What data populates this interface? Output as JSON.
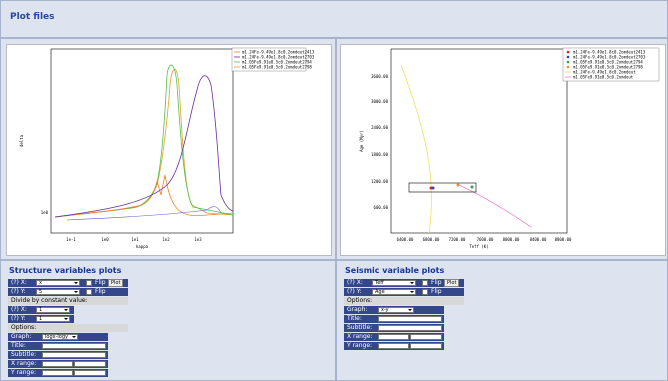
{
  "header": {
    "title": "Plot files"
  },
  "left_plot": {
    "y_label": "delta",
    "x_label": "kappa",
    "x_ticks": [
      "1e-1",
      "1e0",
      "1e1",
      "1e2",
      "1e3"
    ],
    "y_ticks": [
      "1e0"
    ],
    "legend": [
      {
        "label": "m1.24Fe-9.49e1.8c0.2omdeut2413",
        "color": "#f08030"
      },
      {
        "label": "m1.24Fe-9.49e1.8c0.2omdeut2703",
        "color": "#6a2ca0"
      },
      {
        "label": "m1.05Fe9.91e0.5c0.2omdeut2794",
        "color": "#50c050"
      },
      {
        "label": "m1.05Fe9.91e0.5c0.2omdeut2798",
        "color": "#e0a020"
      }
    ]
  },
  "right_plot": {
    "y_label": "Age (Myr)",
    "x_label": "Teff (K)",
    "x_ticks": [
      "6400.00",
      "6800.00",
      "7200.00",
      "7600.00",
      "8000.00",
      "8400.00",
      "8800.00"
    ],
    "y_ticks": [
      "3600.00",
      "3000.00",
      "2400.00",
      "1800.00",
      "1200.00",
      "600.00"
    ],
    "legend": [
      {
        "label": "m1.24Fe-9.49e1.8c0.2omdeut2413",
        "color": "#e02020",
        "kind": "dot"
      },
      {
        "label": "m1.24Fe-9.49e1.8c0.2omdeut2703",
        "color": "#3040c0",
        "kind": "dot"
      },
      {
        "label": "m1.05Fe9.91e0.5c0.2omdeut2794",
        "color": "#30a040",
        "kind": "dot"
      },
      {
        "label": "m1.05Fe9.91e0.5c0.2omdeut2798",
        "color": "#f09020",
        "kind": "dot"
      },
      {
        "label": "m1.24Fe-9.49e1.8c0.2omdeut",
        "color": "#f0e060",
        "kind": "line"
      },
      {
        "label": "m1.05Fe9.91e0.5c0.2omdeut",
        "color": "#f080d0",
        "kind": "line"
      }
    ]
  },
  "structure_form": {
    "title": "Structure variables plots",
    "x_label": "(?) X:",
    "x_value": "x",
    "flip_x": "Flip",
    "plot": "Plot",
    "y_label": "(?) Y:",
    "y_value": "5",
    "flip_y": "Flip",
    "divide": "Divide by constant value:",
    "div_x_label": "(?) X:",
    "div_x_value": "1",
    "div_y_label": "(?) Y:",
    "div_y_value": "1",
    "options": "Options:",
    "graph_label": "Graph:",
    "graph_value": "logx-logy",
    "title_label": "Title:",
    "subtitle_label": "Subtitle:",
    "xrange_label": "X range:",
    "yrange_label": "Y range:"
  },
  "seismic_form": {
    "title": "Seismic variable plots",
    "x_label": "(?) X:",
    "x_value": "Teff",
    "flip_x": "Flip",
    "plot": "Plot",
    "y_label": "(?) Y:",
    "y_value": "Age",
    "flip_y": "Flip",
    "options": "Options:",
    "graph_label": "Graph:",
    "graph_value": "x-y",
    "title_label": "Title:",
    "subtitle_label": "Subtitle:",
    "xrange_label": "X range:",
    "yrange_label": "Y range:"
  }
}
